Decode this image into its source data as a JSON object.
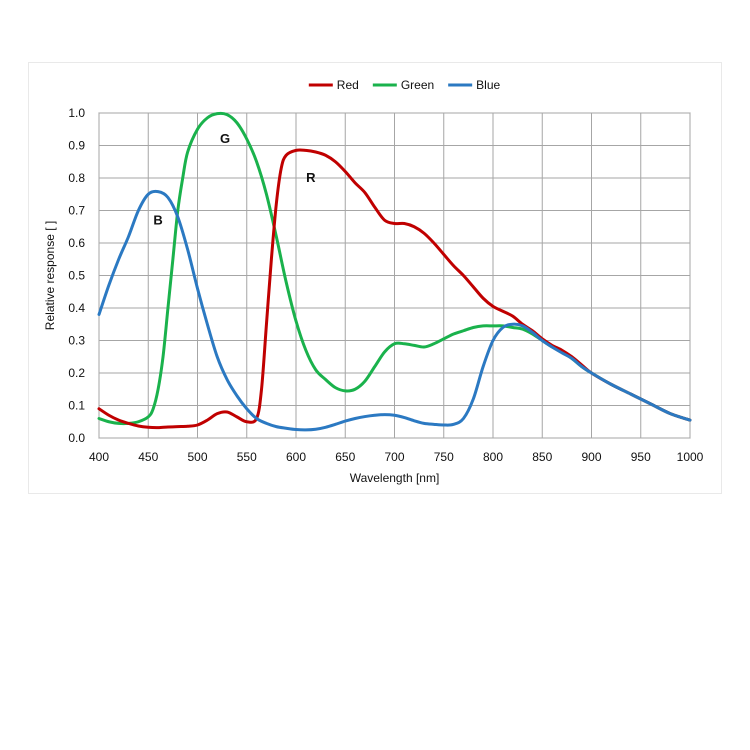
{
  "chart_data": {
    "type": "line",
    "title": "",
    "xlabel": "Wavelength [nm]",
    "ylabel": "Relative response [ ]",
    "xlim": [
      400,
      1000
    ],
    "ylim": [
      0,
      1.0
    ],
    "grid": true,
    "legend_position": "top-center",
    "x_ticks": [
      "400",
      "450",
      "500",
      "550",
      "600",
      "650",
      "700",
      "750",
      "800",
      "850",
      "900",
      "950",
      "1000"
    ],
    "y_ticks": [
      "0.0",
      "0.1",
      "0.2",
      "0.3",
      "0.4",
      "0.5",
      "0.6",
      "0.7",
      "0.8",
      "0.9",
      "1.0"
    ],
    "series": [
      {
        "name": "Red",
        "color": "#c00000",
        "curve_label": "R",
        "points": [
          [
            400,
            0.09
          ],
          [
            410,
            0.07
          ],
          [
            420,
            0.055
          ],
          [
            430,
            0.045
          ],
          [
            440,
            0.037
          ],
          [
            450,
            0.033
          ],
          [
            460,
            0.032
          ],
          [
            470,
            0.034
          ],
          [
            480,
            0.035
          ],
          [
            490,
            0.036
          ],
          [
            500,
            0.04
          ],
          [
            510,
            0.055
          ],
          [
            520,
            0.075
          ],
          [
            530,
            0.08
          ],
          [
            540,
            0.065
          ],
          [
            550,
            0.05
          ],
          [
            560,
            0.06
          ],
          [
            565,
            0.15
          ],
          [
            570,
            0.35
          ],
          [
            575,
            0.55
          ],
          [
            580,
            0.72
          ],
          [
            585,
            0.83
          ],
          [
            590,
            0.87
          ],
          [
            600,
            0.885
          ],
          [
            610,
            0.885
          ],
          [
            620,
            0.88
          ],
          [
            630,
            0.87
          ],
          [
            640,
            0.85
          ],
          [
            650,
            0.82
          ],
          [
            660,
            0.785
          ],
          [
            670,
            0.755
          ],
          [
            680,
            0.71
          ],
          [
            690,
            0.67
          ],
          [
            700,
            0.66
          ],
          [
            710,
            0.66
          ],
          [
            720,
            0.65
          ],
          [
            730,
            0.63
          ],
          [
            740,
            0.6
          ],
          [
            750,
            0.565
          ],
          [
            760,
            0.53
          ],
          [
            770,
            0.5
          ],
          [
            780,
            0.465
          ],
          [
            790,
            0.43
          ],
          [
            800,
            0.405
          ],
          [
            810,
            0.39
          ],
          [
            820,
            0.375
          ],
          [
            830,
            0.35
          ],
          [
            840,
            0.33
          ],
          [
            850,
            0.305
          ],
          [
            860,
            0.285
          ],
          [
            870,
            0.27
          ],
          [
            880,
            0.25
          ],
          [
            890,
            0.225
          ],
          [
            900,
            0.2
          ],
          [
            920,
            0.165
          ],
          [
            940,
            0.135
          ],
          [
            960,
            0.105
          ],
          [
            980,
            0.075
          ],
          [
            1000,
            0.055
          ]
        ]
      },
      {
        "name": "Green",
        "color": "#1ab24c",
        "curve_label": "G",
        "points": [
          [
            400,
            0.06
          ],
          [
            410,
            0.05
          ],
          [
            420,
            0.045
          ],
          [
            430,
            0.045
          ],
          [
            440,
            0.05
          ],
          [
            450,
            0.065
          ],
          [
            455,
            0.09
          ],
          [
            460,
            0.15
          ],
          [
            465,
            0.25
          ],
          [
            470,
            0.4
          ],
          [
            475,
            0.55
          ],
          [
            480,
            0.7
          ],
          [
            485,
            0.8
          ],
          [
            490,
            0.88
          ],
          [
            500,
            0.95
          ],
          [
            510,
            0.985
          ],
          [
            520,
            0.998
          ],
          [
            530,
            0.995
          ],
          [
            540,
            0.97
          ],
          [
            550,
            0.92
          ],
          [
            560,
            0.85
          ],
          [
            570,
            0.75
          ],
          [
            580,
            0.62
          ],
          [
            590,
            0.48
          ],
          [
            600,
            0.36
          ],
          [
            610,
            0.27
          ],
          [
            620,
            0.21
          ],
          [
            630,
            0.18
          ],
          [
            640,
            0.155
          ],
          [
            650,
            0.145
          ],
          [
            660,
            0.15
          ],
          [
            670,
            0.175
          ],
          [
            680,
            0.22
          ],
          [
            690,
            0.265
          ],
          [
            700,
            0.29
          ],
          [
            710,
            0.29
          ],
          [
            720,
            0.285
          ],
          [
            730,
            0.28
          ],
          [
            740,
            0.29
          ],
          [
            750,
            0.305
          ],
          [
            760,
            0.32
          ],
          [
            770,
            0.33
          ],
          [
            780,
            0.34
          ],
          [
            790,
            0.345
          ],
          [
            800,
            0.345
          ],
          [
            810,
            0.345
          ],
          [
            820,
            0.34
          ],
          [
            830,
            0.335
          ],
          [
            840,
            0.32
          ],
          [
            850,
            0.3
          ],
          [
            860,
            0.28
          ],
          [
            870,
            0.265
          ],
          [
            880,
            0.245
          ],
          [
            890,
            0.22
          ],
          [
            900,
            0.2
          ],
          [
            920,
            0.165
          ],
          [
            940,
            0.135
          ],
          [
            960,
            0.105
          ],
          [
            980,
            0.075
          ],
          [
            1000,
            0.055
          ]
        ]
      },
      {
        "name": "Blue",
        "color": "#2b79c2",
        "curve_label": "B",
        "points": [
          [
            400,
            0.38
          ],
          [
            410,
            0.47
          ],
          [
            420,
            0.55
          ],
          [
            430,
            0.62
          ],
          [
            440,
            0.7
          ],
          [
            450,
            0.75
          ],
          [
            460,
            0.758
          ],
          [
            470,
            0.74
          ],
          [
            480,
            0.68
          ],
          [
            490,
            0.58
          ],
          [
            500,
            0.46
          ],
          [
            510,
            0.35
          ],
          [
            520,
            0.25
          ],
          [
            530,
            0.18
          ],
          [
            540,
            0.13
          ],
          [
            550,
            0.09
          ],
          [
            560,
            0.06
          ],
          [
            570,
            0.045
          ],
          [
            580,
            0.035
          ],
          [
            590,
            0.03
          ],
          [
            600,
            0.026
          ],
          [
            610,
            0.025
          ],
          [
            620,
            0.027
          ],
          [
            630,
            0.033
          ],
          [
            640,
            0.042
          ],
          [
            650,
            0.052
          ],
          [
            660,
            0.06
          ],
          [
            670,
            0.066
          ],
          [
            680,
            0.07
          ],
          [
            690,
            0.072
          ],
          [
            700,
            0.07
          ],
          [
            710,
            0.063
          ],
          [
            720,
            0.053
          ],
          [
            730,
            0.045
          ],
          [
            740,
            0.042
          ],
          [
            750,
            0.04
          ],
          [
            760,
            0.042
          ],
          [
            770,
            0.06
          ],
          [
            780,
            0.12
          ],
          [
            790,
            0.22
          ],
          [
            800,
            0.3
          ],
          [
            810,
            0.34
          ],
          [
            820,
            0.35
          ],
          [
            830,
            0.345
          ],
          [
            840,
            0.325
          ],
          [
            850,
            0.3
          ],
          [
            860,
            0.28
          ],
          [
            870,
            0.262
          ],
          [
            880,
            0.245
          ],
          [
            890,
            0.22
          ],
          [
            900,
            0.2
          ],
          [
            920,
            0.165
          ],
          [
            940,
            0.135
          ],
          [
            960,
            0.105
          ],
          [
            980,
            0.075
          ],
          [
            1000,
            0.055
          ]
        ]
      }
    ],
    "annotations": [
      {
        "text": "G",
        "series": "Green",
        "x": 528,
        "y": 0.92
      },
      {
        "text": "R",
        "series": "Red",
        "x": 615,
        "y": 0.8
      },
      {
        "text": "B",
        "series": "Blue",
        "x": 460,
        "y": 0.67
      }
    ]
  }
}
